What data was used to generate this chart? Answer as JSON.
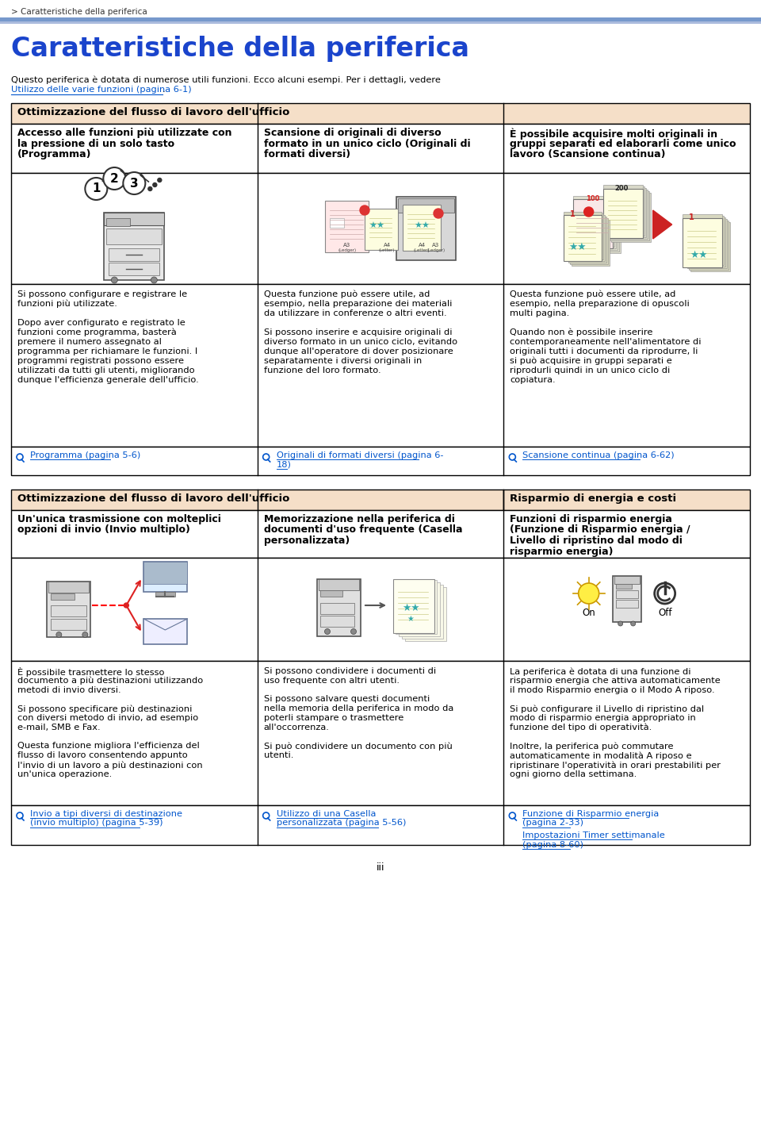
{
  "page_title": "Caratteristiche della periferica",
  "breadcrumb": "> Caratteristiche della periferica",
  "intro_text1": "Questo periferica è dotata di numerose utili funzioni. Ecco alcuni esempi. Per i dettagli, vedere ",
  "intro_link": "Utilizzo delle varie funzioni (pagina 6-1)",
  "intro_dot": ".",
  "section1_header": "Ottimizzazione del flusso di lavoro dell'ufficio",
  "section2_header": "Ottimizzazione del flusso di lavoro dell'ufficio",
  "section2b_header": "Risparmio di energia e costi",
  "col1_title_lines": [
    "Accesso alle funzioni più utilizzate con",
    "la pressione di un solo tasto",
    "(Programma)"
  ],
  "col2_title_lines": [
    "Scansione di originali di diverso",
    "formato in un unico ciclo (Originali di",
    "formati diversi)"
  ],
  "col3_title_lines": [
    "È possibile acquisire molti originali in",
    "gruppi separati ed elaborarli come unico",
    "lavoro (Scansione continua)"
  ],
  "col1_body_lines": [
    "Si possono configurare e registrare le",
    "funzioni più utilizzate.",
    "",
    "Dopo aver configurato e registrato le",
    "funzioni come programma, basterà",
    "premere il numero assegnato al",
    "programma per richiamare le funzioni. I",
    "programmi registrati possono essere",
    "utilizzati da tutti gli utenti, migliorando",
    "dunque l'efficienza generale dell'ufficio."
  ],
  "col1_link": "Programma (pagina 5-6)",
  "col2_body_lines": [
    "Questa funzione può essere utile, ad",
    "esempio, nella preparazione dei materiali",
    "da utilizzare in conferenze o altri eventi.",
    "",
    "Si possono inserire e acquisire originali di",
    "diverso formato in un unico ciclo, evitando",
    "dunque all'operatore di dover posizionare",
    "separatamente i diversi originali in",
    "funzione del loro formato."
  ],
  "col2_link_lines": [
    "Originali di formati diversi (pagina 6-",
    "18)"
  ],
  "col3_body_lines": [
    "Questa funzione può essere utile, ad",
    "esempio, nella preparazione di opuscoli",
    "multi pagina.",
    "",
    "Quando non è possibile inserire",
    "contemporaneamente nell'alimentatore di",
    "originali tutti i documenti da riprodurre, li",
    "si può acquisire in gruppi separati e",
    "riprodurli quindi in un unico ciclo di",
    "copiatura."
  ],
  "col3_link": "Scansione continua (pagina 6-62)",
  "row2_col1_title_lines": [
    "Un'unica trasmissione con molteplici",
    "opzioni di invio (Invio multiplo)"
  ],
  "row2_col2_title_lines": [
    "Memorizzazione nella periferica di",
    "documenti d'uso frequente (Casella",
    "personalizzata)"
  ],
  "row2_col3_title_lines": [
    "Funzioni di risparmio energia",
    "(Funzione di Risparmio energia /",
    "Livello di ripristino dal modo di",
    "risparmio energia)"
  ],
  "row2_col1_body_lines": [
    "È possibile trasmettere lo stesso",
    "documento a più destinazioni utilizzando",
    "metodi di invio diversi.",
    "",
    "Si possono specificare più destinazioni",
    "con diversi metodo di invio, ad esempio",
    "e-mail, SMB e Fax.",
    "",
    "Questa funzione migliora l'efficienza del",
    "flusso di lavoro consentendo appunto",
    "l'invio di un lavoro a più destinazioni con",
    "un'unica operazione."
  ],
  "row2_col1_link_lines": [
    "Invio a tipi diversi di destinazione",
    "(invio multiplo) (pagina 5-39)"
  ],
  "row2_col2_body_lines": [
    "Si possono condividere i documenti di",
    "uso frequente con altri utenti.",
    "",
    "Si possono salvare questi documenti",
    "nella memoria della periferica in modo da",
    "poterli stampare o trasmettere",
    "all'occorrenza.",
    "",
    "Si può condividere un documento con più",
    "utenti."
  ],
  "row2_col2_link_lines": [
    "Utilizzo di una Casella",
    "personalizzata (pagina 5-56)"
  ],
  "row2_col3_body_lines": [
    "La periferica è dotata di una funzione di",
    "risparmio energia che attiva automaticamente",
    "il modo Risparmio energia o il Modo A riposo.",
    "",
    "Si può configurare il Livello di ripristino dal",
    "modo di risparmio energia appropriato in",
    "funzione del tipo di operatività.",
    "",
    "Inoltre, la periferica può commutare",
    "automaticamente in modalità A riposo e",
    "ripristinare l'operatività in orari prestabiliti per",
    "ogni giorno della settimana."
  ],
  "row2_col3_link1_lines": [
    "Funzione di Risparmio energia",
    "(pagina 2-33)"
  ],
  "row2_col3_link2_lines": [
    "Impostazioni Timer settimanale",
    "(pagina 8-60)"
  ],
  "footer": "iii",
  "bg_color": "#ffffff",
  "header_bg": "#f5dfc8",
  "border_color": "#000000",
  "title_color": "#1a44cc",
  "link_color": "#0055cc",
  "breadcrumb_color": "#333333",
  "top_bar_color1": "#7799cc",
  "top_bar_color2": "#aabbdd",
  "title_fontsize": 24,
  "body_fontsize": 8.2,
  "col_title_fontsize": 9.0,
  "header_fontsize": 9.5
}
